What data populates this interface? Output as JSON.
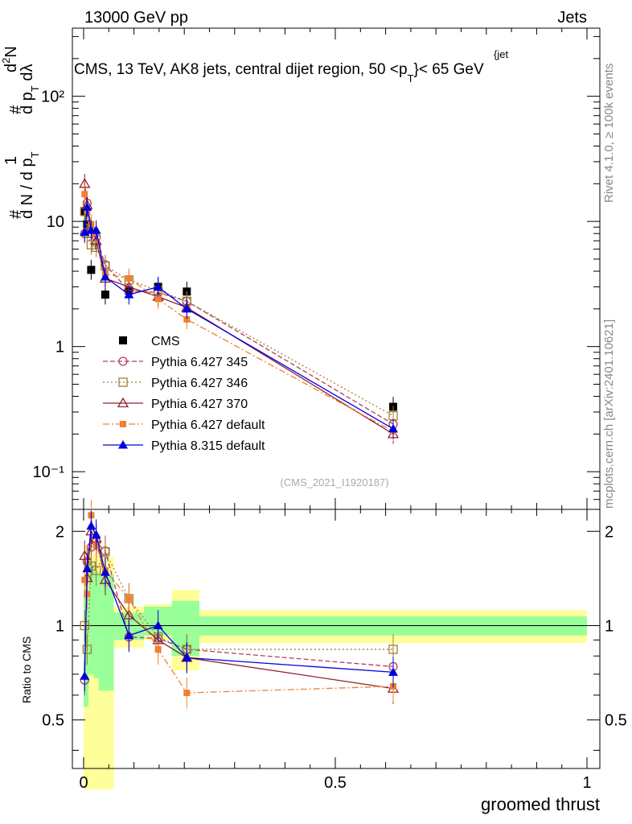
{
  "header": {
    "left": "13000 GeV pp",
    "right": "Jets",
    "side_top": "Rivet 4.1.0, ≥ 100k events",
    "side_bottom": "mcplots.cern.ch [arXiv:2401.10621]"
  },
  "chart_data": [
    {
      "type": "scatter",
      "title": "CMS, 13 TeV, AK8 jets, central dijet region, 50 <p",
      "title_sup": "{jet",
      "title_sub": "T",
      "title_tail": "}< 65 GeV",
      "watermark": "(CMS_2021_I1920187)",
      "xlabel": "groomed thrust",
      "ylabel": {
        "p1": "#",
        "p2": "1",
        "p3": "d N / d p",
        "p3sub": "T",
        "p4": "#",
        "p5": "d",
        "p5sup": "2",
        "p5b": "N",
        "p6": "d p",
        "p6sub": "T",
        "p6b": " dλ"
      },
      "xlim": [
        0,
        1
      ],
      "ylim": [
        0.05,
        350
      ],
      "yscale": "log",
      "xticks": [
        0,
        0.5,
        1
      ],
      "xtick_labels": [
        "0",
        "0.5",
        "1"
      ],
      "yticks": [
        0.1,
        1,
        10,
        100
      ],
      "ytick_labels": [
        "10⁻¹",
        "1",
        "10",
        "10²"
      ],
      "data_x": [
        0.002,
        0.007,
        0.015,
        0.025,
        0.043,
        0.09,
        0.148,
        0.205,
        0.615
      ],
      "series": [
        {
          "name": "CMS",
          "color": "#000000",
          "marker": "square-filled",
          "values": [
            12.0,
            9.5,
            4.1,
            2.6,
            2.8,
            3.0,
            2.75,
            0.33
          ],
          "x": [
            0.002,
            0.007,
            0.015,
            0.043,
            0.09,
            0.148,
            0.205,
            0.615
          ]
        },
        {
          "name": "Pythia 6.427 345",
          "color": "#b04060",
          "marker": "circle-open",
          "dash": "6,3",
          "values": [
            8.0,
            14.0,
            8.0,
            7.5,
            4.5,
            2.8,
            2.7,
            2.3,
            0.24
          ],
          "ratio": [
            0.67,
            1.6,
            1.78,
            1.85,
            1.73,
            0.92,
            0.91,
            0.84,
            0.74
          ]
        },
        {
          "name": "Pythia 6.427 346",
          "color": "#a08030",
          "marker": "square-open",
          "dash": "2,3",
          "values": [
            12.0,
            8.0,
            6.5,
            6.2,
            4.4,
            3.4,
            2.8,
            2.3,
            0.28
          ],
          "ratio": [
            1.0,
            0.84,
            1.55,
            1.5,
            1.72,
            1.22,
            0.92,
            0.84,
            0.84
          ]
        },
        {
          "name": "Pythia 6.427 370",
          "color": "#902030",
          "marker": "triangle-open",
          "dash": "",
          "values": [
            20.0,
            13.5,
            9.0,
            7.0,
            3.5,
            3.0,
            2.5,
            2.05,
            0.2
          ],
          "ratio": [
            1.67,
            1.42,
            2.0,
            1.9,
            1.4,
            1.08,
            0.9,
            0.79,
            0.63
          ]
        },
        {
          "name": "Pythia 6.427 default",
          "color": "#f08030",
          "marker": "square-filled-small",
          "dash": "8,3,2,3",
          "values": [
            16.5,
            12.0,
            9.5,
            8.0,
            3.8,
            3.5,
            2.4,
            1.65,
            0.21
          ],
          "ratio": [
            1.4,
            1.26,
            2.25,
            1.8,
            1.5,
            1.22,
            0.84,
            0.61,
            0.64
          ]
        },
        {
          "name": "Pythia 8.315 default",
          "color": "#0000dd",
          "marker": "triangle-filled",
          "dash": "",
          "values": [
            8.2,
            13.0,
            8.5,
            8.5,
            3.6,
            2.6,
            3.0,
            2.0,
            0.22
          ],
          "ratio": [
            0.69,
            1.52,
            2.08,
            1.95,
            1.48,
            0.93,
            1.0,
            0.79,
            0.71
          ]
        }
      ]
    },
    {
      "type": "scatter",
      "ylabel": "Ratio to CMS",
      "ylim": [
        0.35,
        2.35
      ],
      "yscale": "log",
      "yticks": [
        0.5,
        1,
        2
      ],
      "ytick_labels": [
        "0.5",
        "1",
        "2"
      ],
      "band_bins": [
        0.0,
        0.01,
        0.02,
        0.03,
        0.06,
        0.12,
        0.175,
        0.23,
        1.0
      ],
      "band_inner": [
        [
          0.55,
          1.3
        ],
        [
          0.7,
          1.6
        ],
        [
          0.68,
          1.5
        ],
        [
          0.62,
          1.45
        ],
        [
          0.9,
          1.1
        ],
        [
          0.93,
          1.15
        ],
        [
          0.8,
          1.2
        ],
        [
          0.93,
          1.07
        ]
      ],
      "band_outer": [
        [
          0.3,
          1.8
        ],
        [
          0.3,
          1.75
        ],
        [
          0.3,
          1.7
        ],
        [
          0.3,
          1.65
        ],
        [
          0.85,
          1.15
        ],
        [
          0.9,
          1.17
        ],
        [
          0.72,
          1.3
        ],
        [
          0.88,
          1.12
        ]
      ]
    }
  ]
}
